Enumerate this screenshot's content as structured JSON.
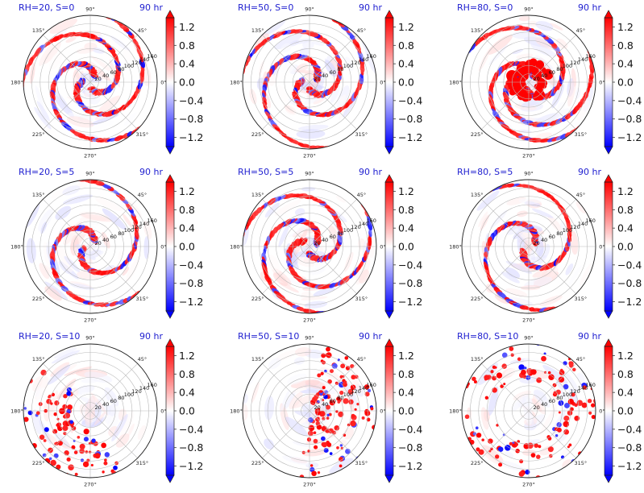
{
  "chart_data": {
    "type": "heatmap",
    "layout": "3x3 polar panels, each with colorbar",
    "colormap": "bwr (blue-white-red), extended both ends",
    "colors": {
      "negative": "#0000ff",
      "zero": "#ffffff",
      "positive": "#ff0000",
      "title": "#1f1fd0"
    },
    "angle_labels": [
      "90°",
      "45°",
      "0°",
      "315°",
      "270°",
      "225°",
      "180°",
      "135°"
    ],
    "radial_ticks": [
      "20",
      "40",
      "60",
      "80",
      "100",
      "120",
      "140",
      "160"
    ],
    "colorbar_ticks": [
      "1.2",
      "0.8",
      "0.4",
      "0.0",
      "−0.4",
      "−0.8",
      "−1.2"
    ],
    "colorbar_range": [
      -1.4,
      1.4
    ],
    "time_label": "90 hr",
    "panels": [
      {
        "title": "RH=20, S=0",
        "pattern": "two-armed spiral, strong arms",
        "seed": 3,
        "mode": "spiral",
        "core": 0.25
      },
      {
        "title": "RH=50, S=0",
        "pattern": "broad multi-armed spiral",
        "seed": 7,
        "mode": "spiral",
        "core": 0.35
      },
      {
        "title": "RH=80, S=0",
        "pattern": "intense red core ring",
        "seed": 11,
        "mode": "core",
        "core": 1.0
      },
      {
        "title": "RH=20, S=5",
        "pattern": "weak asymmetric spiral",
        "seed": 13,
        "mode": "spiral",
        "core": 0.2
      },
      {
        "title": "RH=50, S=5",
        "pattern": "strong spiral with blue bands",
        "seed": 17,
        "mode": "spiral",
        "core": 0.3
      },
      {
        "title": "RH=80, S=5",
        "pattern": "tight strong spiral",
        "seed": 19,
        "mode": "spiral",
        "core": 0.5
      },
      {
        "title": "RH=20, S=10",
        "pattern": "scattered cells, lower-left",
        "seed": 23,
        "mode": "scatter-left",
        "core": 0.0
      },
      {
        "title": "RH=50, S=10",
        "pattern": "cells concentrated east",
        "seed": 29,
        "mode": "scatter-right",
        "core": 0.0
      },
      {
        "title": "RH=80, S=10",
        "pattern": "sparse cells, outer edge",
        "seed": 31,
        "mode": "scatter-outer",
        "core": 0.0
      }
    ]
  }
}
